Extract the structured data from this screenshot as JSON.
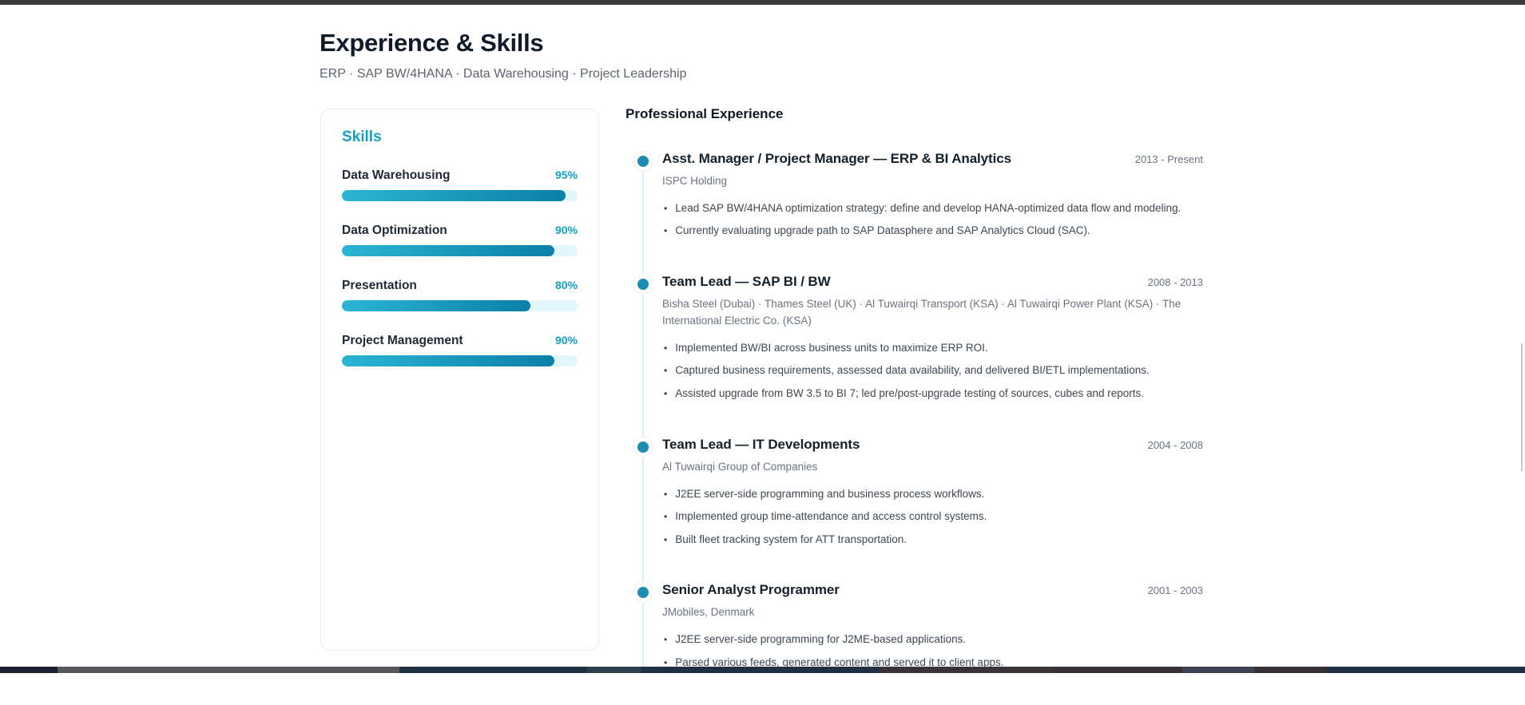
{
  "page": {
    "title": "Experience & Skills",
    "subtitle": "ERP · SAP BW/4HANA · Data Warehousing · Project Leadership"
  },
  "skills_panel": {
    "heading": "Skills",
    "skills": [
      {
        "name": "Data Warehousing",
        "percent": "95%",
        "value": 95
      },
      {
        "name": "Data Optimization",
        "percent": "90%",
        "value": 90
      },
      {
        "name": "Presentation",
        "percent": "80%",
        "value": 80
      },
      {
        "name": "Project Management",
        "percent": "90%",
        "value": 90
      }
    ]
  },
  "experience": {
    "heading": "Professional Experience",
    "entries": [
      {
        "title": "Asst. Manager / Project Manager — ERP & BI Analytics",
        "period": "2013 - Present",
        "company": "ISPC Holding",
        "bullets": [
          "Lead SAP BW/4HANA optimization strategy: define and develop HANA-optimized data flow and modeling.",
          "Currently evaluating upgrade path to SAP Datasphere and SAP Analytics Cloud (SAC)."
        ]
      },
      {
        "title": "Team Lead — SAP BI / BW",
        "period": "2008 - 2013",
        "company": "Bisha Steel (Dubai) · Thames Steel (UK) · Al Tuwairqi Transport (KSA) · Al Tuwairqi Power Plant (KSA) · The International Electric Co. (KSA)",
        "bullets": [
          "Implemented BW/BI across business units to maximize ERP ROI.",
          "Captured business requirements, assessed data availability, and delivered BI/ETL implementations.",
          "Assisted upgrade from BW 3.5 to BI 7; led pre/post-upgrade testing of sources, cubes and reports."
        ]
      },
      {
        "title": "Team Lead — IT Developments",
        "period": "2004 - 2008",
        "company": "Al Tuwairqi Group of Companies",
        "bullets": [
          "J2EE server-side programming and business process workflows.",
          "Implemented group time-attendance and access control systems.",
          "Built fleet tracking system for ATT transportation."
        ]
      },
      {
        "title": "Senior Analyst Programmer",
        "period": "2001 - 2003",
        "company": "JMobiles, Denmark",
        "bullets": [
          "J2EE server-side programming for J2ME-based applications.",
          "Parsed various feeds, generated content and served it to client apps."
        ]
      }
    ]
  },
  "colors": {
    "accent": "#14a0c4",
    "bar_start": "#2bb5d3",
    "bar_end": "#0b7fa8",
    "bar_track": "#e2f7fb",
    "timeline_line": "#d8f1f8",
    "dot": "#1b8db0",
    "heading_dark": "#101b29",
    "text_dark": "#1d2937",
    "body_gray": "#3d4752",
    "muted_gray": "#6b7280"
  }
}
